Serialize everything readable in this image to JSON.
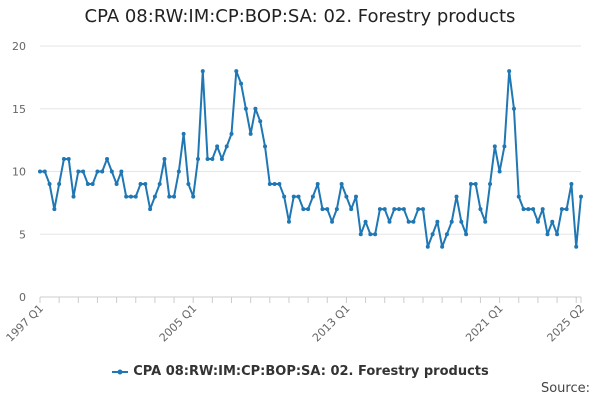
{
  "chart_data": {
    "type": "line",
    "title": "CPA 08:RW:IM:CP:BOP:SA: 02. Forestry products",
    "xlabel": "",
    "ylabel": "",
    "ylim": [
      0,
      20
    ],
    "yticks": [
      0,
      5,
      10,
      15,
      20
    ],
    "start_period": "1997 Q1",
    "end_period": "2025 Q2",
    "xticks": [
      "1997 Q1",
      "2005 Q1",
      "2013 Q1",
      "2021 Q1",
      "2025 Q2"
    ],
    "grid": true,
    "legend_position": "bottom",
    "series_color": "#1f77b4",
    "series": [
      {
        "name": "CPA 08:RW:IM:CP:BOP:SA: 02. Forestry products",
        "values": [
          10,
          10,
          9,
          7,
          9,
          11,
          11,
          8,
          10,
          10,
          9,
          9,
          10,
          10,
          11,
          10,
          9,
          10,
          8,
          8,
          8,
          9,
          9,
          7,
          8,
          9,
          11,
          8,
          8,
          10,
          13,
          9,
          8,
          11,
          18,
          11,
          11,
          12,
          11,
          12,
          13,
          18,
          17,
          15,
          13,
          15,
          14,
          12,
          9,
          9,
          9,
          8,
          6,
          8,
          8,
          7,
          7,
          8,
          9,
          7,
          7,
          6,
          7,
          9,
          8,
          7,
          8,
          5,
          6,
          5,
          5,
          7,
          7,
          6,
          7,
          7,
          7,
          6,
          6,
          7,
          7,
          4,
          5,
          6,
          4,
          5,
          6,
          8,
          6,
          5,
          9,
          9,
          7,
          6,
          9,
          12,
          10,
          12,
          18,
          15,
          8,
          7,
          7,
          7,
          6,
          7,
          5,
          6,
          5,
          7,
          7,
          9,
          4,
          8
        ]
      }
    ]
  },
  "legend": {
    "label": "CPA 08:RW:IM:CP:BOP:SA: 02. Forestry products"
  },
  "footer": {
    "source_label": "Source:"
  }
}
